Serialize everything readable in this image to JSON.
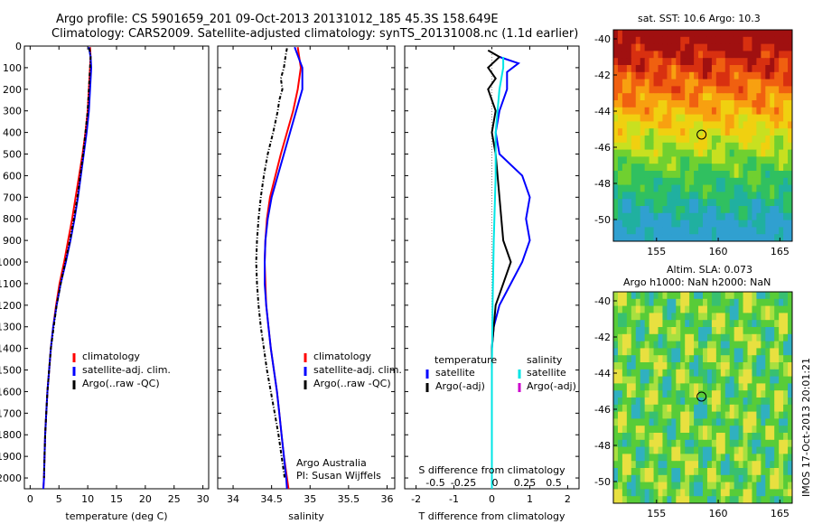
{
  "header": {
    "title_line1": "Argo profile: CS 5901659_201 09-Oct-2013 20131012_185 45.3S 158.649E",
    "title_line2": "Climatology: CARS2009. Satellite-adjusted climatology: synTS_20131008.nc (1.1d earlier)"
  },
  "colors": {
    "climatology": "#ff0000",
    "satellite": "#0000ff",
    "argo": "#000000",
    "sat_salinity": "#00e5e5",
    "argo_salinity_adj": "#cc00cc"
  },
  "chart_data": [
    {
      "type": "line",
      "xlabel": "temperature (deg C)",
      "ylabel": "",
      "xlim": [
        -1,
        31
      ],
      "ylim": [
        2050,
        0
      ],
      "xticks": [
        0,
        5,
        10,
        15,
        20,
        25,
        30
      ],
      "yticks": [
        0,
        100,
        200,
        300,
        400,
        500,
        600,
        700,
        800,
        900,
        1000,
        1100,
        1200,
        1300,
        1400,
        1500,
        1600,
        1700,
        1800,
        1900,
        2000
      ],
      "legend": [
        "climatology",
        "satellite-adj. clim.",
        "Argo(..raw -QC)"
      ],
      "series": [
        {
          "name": "climatology",
          "color": "#ff0000",
          "points": [
            [
              10.4,
              5
            ],
            [
              10.5,
              50
            ],
            [
              10.4,
              100
            ],
            [
              10.2,
              200
            ],
            [
              10.0,
              300
            ],
            [
              9.6,
              400
            ],
            [
              9.1,
              500
            ],
            [
              8.5,
              600
            ],
            [
              7.9,
              700
            ],
            [
              7.3,
              800
            ],
            [
              6.6,
              900
            ],
            [
              5.9,
              1000
            ],
            [
              5.1,
              1100
            ],
            [
              4.5,
              1200
            ],
            [
              4.0,
              1300
            ],
            [
              3.6,
              1400
            ],
            [
              3.3,
              1500
            ],
            [
              3.0,
              1600
            ],
            [
              2.8,
              1700
            ],
            [
              2.6,
              1800
            ],
            [
              2.5,
              1900
            ],
            [
              2.4,
              2000
            ],
            [
              2.3,
              2050
            ]
          ]
        },
        {
          "name": "satellite-adj. clim.",
          "color": "#0000ff",
          "points": [
            [
              10.2,
              5
            ],
            [
              10.5,
              50
            ],
            [
              10.6,
              100
            ],
            [
              10.4,
              200
            ],
            [
              10.2,
              300
            ],
            [
              9.8,
              400
            ],
            [
              9.3,
              500
            ],
            [
              8.8,
              600
            ],
            [
              8.3,
              700
            ],
            [
              7.7,
              800
            ],
            [
              7.0,
              900
            ],
            [
              6.2,
              1000
            ],
            [
              5.3,
              1100
            ],
            [
              4.6,
              1200
            ],
            [
              4.0,
              1300
            ],
            [
              3.6,
              1400
            ],
            [
              3.3,
              1500
            ],
            [
              3.0,
              1600
            ],
            [
              2.8,
              1700
            ],
            [
              2.6,
              1800
            ],
            [
              2.5,
              1900
            ],
            [
              2.4,
              2000
            ],
            [
              2.3,
              2050
            ]
          ]
        },
        {
          "name": "Argo(..raw -QC)",
          "color": "#000000",
          "points": [
            [
              10.3,
              10
            ],
            [
              10.5,
              50
            ],
            [
              10.4,
              100
            ],
            [
              10.2,
              200
            ],
            [
              10.0,
              300
            ],
            [
              9.6,
              400
            ],
            [
              9.2,
              500
            ],
            [
              8.7,
              600
            ],
            [
              8.2,
              700
            ],
            [
              7.6,
              800
            ],
            [
              6.9,
              900
            ],
            [
              6.1,
              1000
            ],
            [
              5.3,
              1100
            ],
            [
              4.6,
              1200
            ],
            [
              4.1,
              1300
            ],
            [
              3.6,
              1400
            ],
            [
              3.3,
              1500
            ],
            [
              3.0,
              1600
            ],
            [
              2.8,
              1700
            ],
            [
              2.6,
              1800
            ],
            [
              2.5,
              1900
            ],
            [
              2.4,
              2000
            ]
          ]
        }
      ]
    },
    {
      "type": "line",
      "xlabel": "salinity",
      "xlim": [
        33.8,
        36.1
      ],
      "ylim": [
        2050,
        0
      ],
      "xticks": [
        34,
        34.5,
        35,
        35.5,
        36
      ],
      "legend": [
        "climatology",
        "satellite-adj. clim.",
        "Argo(..raw -QC)"
      ],
      "annotation": [
        "Argo Australia",
        "PI: Susan Wijffels"
      ],
      "series": [
        {
          "name": "climatology",
          "color": "#ff0000",
          "points": [
            [
              34.84,
              5
            ],
            [
              34.88,
              100
            ],
            [
              34.84,
              200
            ],
            [
              34.78,
              300
            ],
            [
              34.7,
              400
            ],
            [
              34.62,
              500
            ],
            [
              34.55,
              600
            ],
            [
              34.48,
              700
            ],
            [
              34.44,
              800
            ],
            [
              34.42,
              900
            ],
            [
              34.41,
              1000
            ],
            [
              34.42,
              1100
            ],
            [
              34.43,
              1200
            ],
            [
              34.46,
              1300
            ],
            [
              34.49,
              1400
            ],
            [
              34.53,
              1500
            ],
            [
              34.57,
              1600
            ],
            [
              34.6,
              1700
            ],
            [
              34.63,
              1800
            ],
            [
              34.66,
              1900
            ],
            [
              34.7,
              2000
            ],
            [
              34.72,
              2050
            ]
          ]
        },
        {
          "name": "satellite-adj. clim.",
          "color": "#0000ff",
          "points": [
            [
              34.8,
              5
            ],
            [
              34.9,
              100
            ],
            [
              34.9,
              200
            ],
            [
              34.82,
              300
            ],
            [
              34.74,
              400
            ],
            [
              34.66,
              500
            ],
            [
              34.58,
              600
            ],
            [
              34.5,
              700
            ],
            [
              34.45,
              800
            ],
            [
              34.42,
              900
            ],
            [
              34.41,
              1000
            ],
            [
              34.41,
              1100
            ],
            [
              34.43,
              1200
            ],
            [
              34.46,
              1300
            ],
            [
              34.49,
              1400
            ],
            [
              34.53,
              1500
            ],
            [
              34.57,
              1600
            ],
            [
              34.6,
              1700
            ],
            [
              34.63,
              1800
            ],
            [
              34.66,
              1900
            ],
            [
              34.69,
              2000
            ],
            [
              34.7,
              2050
            ]
          ]
        },
        {
          "name": "Argo(..raw -QC)",
          "color": "#000000",
          "points": [
            [
              34.7,
              10
            ],
            [
              34.68,
              50
            ],
            [
              34.66,
              100
            ],
            [
              34.62,
              150
            ],
            [
              34.64,
              200
            ],
            [
              34.6,
              250
            ],
            [
              34.58,
              300
            ],
            [
              34.52,
              400
            ],
            [
              34.45,
              500
            ],
            [
              34.4,
              600
            ],
            [
              34.36,
              700
            ],
            [
              34.33,
              800
            ],
            [
              34.31,
              900
            ],
            [
              34.3,
              1000
            ],
            [
              34.31,
              1100
            ],
            [
              34.33,
              1200
            ],
            [
              34.36,
              1300
            ],
            [
              34.4,
              1400
            ],
            [
              34.44,
              1500
            ],
            [
              34.49,
              1600
            ],
            [
              34.54,
              1700
            ],
            [
              34.59,
              1800
            ],
            [
              34.63,
              1900
            ],
            [
              34.67,
              2000
            ]
          ]
        }
      ]
    },
    {
      "type": "line",
      "xlabel": "T difference from climatology",
      "xlabel_top": "S difference from climatology",
      "xlim": [
        -2.3,
        2.3
      ],
      "ylim": [
        2050,
        0
      ],
      "xticks": [
        -2,
        -1,
        0,
        1,
        2
      ],
      "xticks_top": [
        "-0.5",
        "-0.25",
        "0",
        "0.25",
        "0.5"
      ],
      "legend_header_temperature": "temperature",
      "legend_header_salinity": "salinity",
      "legend_temperature": [
        "satellite",
        "Argo(-adj)"
      ],
      "legend_salinity": [
        "satellite",
        "Argo(-adj)"
      ],
      "series": [
        {
          "name": "satellite",
          "color": "#0000ff",
          "points": [
            [
              0.2,
              50
            ],
            [
              0.7,
              80
            ],
            [
              0.4,
              120
            ],
            [
              0.4,
              200
            ],
            [
              0.2,
              300
            ],
            [
              0.1,
              400
            ],
            [
              0.2,
              500
            ],
            [
              0.8,
              600
            ],
            [
              1.0,
              700
            ],
            [
              0.9,
              800
            ],
            [
              1.0,
              900
            ],
            [
              0.8,
              1000
            ],
            [
              0.5,
              1100
            ],
            [
              0.2,
              1200
            ],
            [
              0.05,
              1300
            ],
            [
              0,
              1400
            ],
            [
              0,
              1600
            ],
            [
              0,
              1800
            ],
            [
              0,
              2050
            ]
          ]
        },
        {
          "name": "Argo(-adj)",
          "color": "#000000",
          "points": [
            [
              -0.1,
              20
            ],
            [
              0.2,
              50
            ],
            [
              -0.1,
              100
            ],
            [
              0.1,
              150
            ],
            [
              -0.1,
              200
            ],
            [
              0.1,
              300
            ],
            [
              0,
              400
            ],
            [
              0.1,
              500
            ],
            [
              0.2,
              700
            ],
            [
              0.3,
              900
            ],
            [
              0.5,
              1000
            ],
            [
              0.3,
              1100
            ],
            [
              0.1,
              1200
            ],
            [
              0,
              1400
            ],
            [
              0,
              1800
            ],
            [
              0,
              2050
            ]
          ]
        },
        {
          "name": "satellite",
          "color": "#00e5e5",
          "points": [
            [
              0.3,
              50
            ],
            [
              0.3,
              100
            ],
            [
              0.2,
              200
            ],
            [
              0.1,
              400
            ],
            [
              0.1,
              600
            ],
            [
              0.05,
              900
            ],
            [
              0.02,
              1200
            ],
            [
              0,
              1500
            ],
            [
              0,
              2050
            ]
          ]
        }
      ]
    }
  ],
  "maps": {
    "top": {
      "title": "sat. SST: 10.6 Argo: 10.3",
      "yticks": [
        "-40",
        "-42",
        "-44",
        "-46",
        "-48",
        "-50"
      ],
      "xticks": [
        "155",
        "160",
        "165"
      ]
    },
    "bottom": {
      "title_line1": "Altim. SLA: 0.073",
      "title_line2": "Argo h1000: NaN h2000: NaN",
      "yticks": [
        "-40",
        "-42",
        "-44",
        "-46",
        "-48",
        "-50"
      ],
      "xticks": [
        "155",
        "160",
        "165"
      ]
    },
    "marker_lon": 158.649,
    "marker_lat": -45.3,
    "lon_range": [
      151.5,
      166
    ],
    "lat_range": [
      -51.2,
      -39.5
    ]
  },
  "side_label": "IMOS 17-Oct-2013 20:01:21"
}
